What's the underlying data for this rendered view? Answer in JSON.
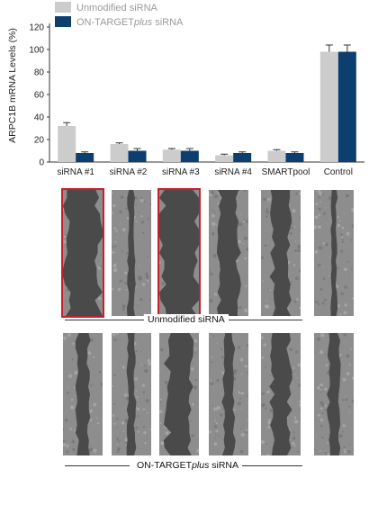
{
  "chart_data": {
    "type": "bar",
    "ylabel": "ARPC1B mRNA Levels (%)",
    "xlabel": "",
    "ylim": [
      0,
      120
    ],
    "yticks": [
      0,
      20,
      40,
      60,
      80,
      100,
      120
    ],
    "grid": false,
    "legend_position": "top-left",
    "categories": [
      "siRNA #1",
      "siRNA #2",
      "siRNA #3",
      "siRNA #4",
      "SMARTpool",
      "Control"
    ],
    "series": [
      {
        "name": "Unmodified siRNA",
        "color": "#cccccc",
        "values": [
          32,
          16,
          11,
          6,
          10,
          98
        ],
        "errors": [
          3,
          1,
          1,
          1,
          1,
          6
        ]
      },
      {
        "name": "ON-TARGETplus siRNA",
        "name_parts": [
          "ON-TARGET",
          "plus",
          " siRNA"
        ],
        "color": "#0c3f6e",
        "values": [
          8,
          10,
          10,
          8,
          8,
          98
        ],
        "errors": [
          1,
          2,
          2,
          1,
          1,
          6
        ]
      }
    ]
  },
  "images": {
    "rows": [
      {
        "label": "Unmodified siRNA",
        "highlighted": [
          true,
          false,
          true,
          false,
          false,
          false
        ],
        "gap_level": [
          0.82,
          0.08,
          0.92,
          0.42,
          0.36,
          0.05
        ]
      },
      {
        "label_parts": [
          "ON-TARGET",
          "plus",
          " siRNA"
        ],
        "highlighted": [
          false,
          false,
          false,
          false,
          false,
          false
        ],
        "gap_level": [
          0.22,
          0.1,
          0.55,
          0.18,
          0.38,
          0.2
        ]
      }
    ],
    "highlight_color": "#c8202a"
  }
}
